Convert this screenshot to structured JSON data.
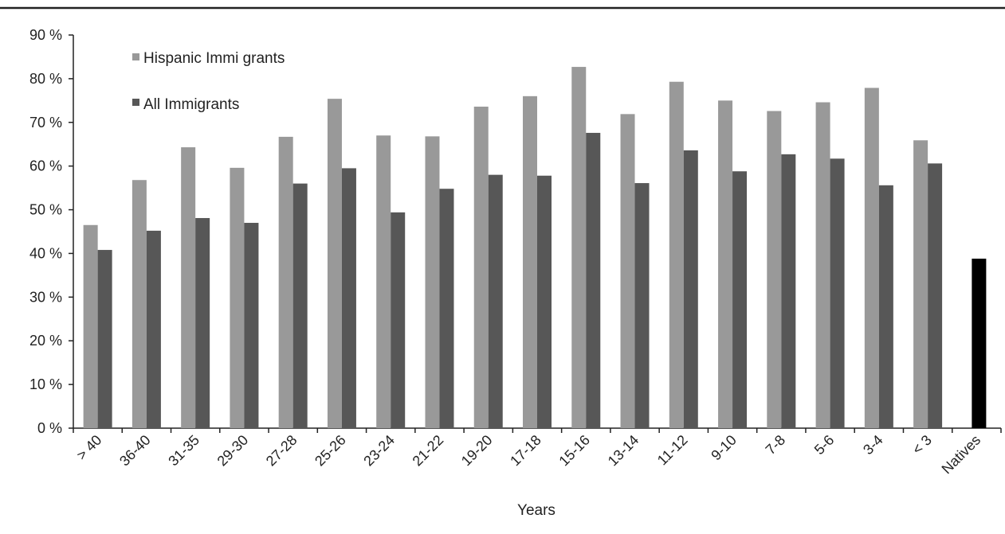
{
  "chart_data": {
    "type": "bar",
    "xlabel": "Years",
    "ylabel": "",
    "ylim": [
      0,
      90
    ],
    "y_ticks": [
      "0 %",
      "10 %",
      "20 %",
      "30 %",
      "40 %",
      "50 %",
      "60 %",
      "70 %",
      "80 %",
      "90 %"
    ],
    "y_tick_values": [
      0,
      10,
      20,
      30,
      40,
      50,
      60,
      70,
      80,
      90
    ],
    "categories": [
      ">40",
      "36-40",
      "31-35",
      "29-30",
      "27-28",
      "25-26",
      "23-24",
      "21-22",
      "19-20",
      "17-18",
      "15-16",
      "13-14",
      "11-12",
      "9-10",
      "7-8",
      "5-6",
      "3-4",
      "< 3",
      "Natives"
    ],
    "category_labels": [
      "> 40",
      "36-40",
      "31-35",
      "29-30",
      "27-28",
      "25-26",
      "23-24",
      "21-22",
      "19-20",
      "17-18",
      "15-16",
      "13-14",
      "11-12",
      "9-10",
      "7-8",
      "5-6",
      "3-4",
      "< 3",
      "Natives"
    ],
    "series": [
      {
        "name": "Hispanic Immi grants",
        "color": "#999999",
        "values": [
          46.5,
          56.8,
          64.3,
          59.6,
          66.7,
          75.4,
          67.0,
          66.8,
          73.6,
          76.0,
          82.7,
          71.9,
          79.3,
          75.0,
          72.6,
          74.6,
          77.9,
          65.9,
          null
        ]
      },
      {
        "name": "All Immigrants",
        "color": "#575757",
        "values": [
          40.8,
          45.2,
          48.1,
          47.0,
          56.0,
          59.5,
          49.4,
          54.8,
          58.0,
          57.8,
          67.6,
          56.1,
          63.6,
          58.8,
          62.7,
          61.7,
          55.6,
          60.6,
          null
        ]
      },
      {
        "name": "",
        "color": "#000000",
        "values": [
          null,
          null,
          null,
          null,
          null,
          null,
          null,
          null,
          null,
          null,
          null,
          null,
          null,
          null,
          null,
          null,
          null,
          null,
          38.8
        ]
      }
    ],
    "legend": {
      "placement": "top-left",
      "items": [
        "Hispanic Immi grants",
        "All Immigrants"
      ]
    },
    "grid": false
  }
}
